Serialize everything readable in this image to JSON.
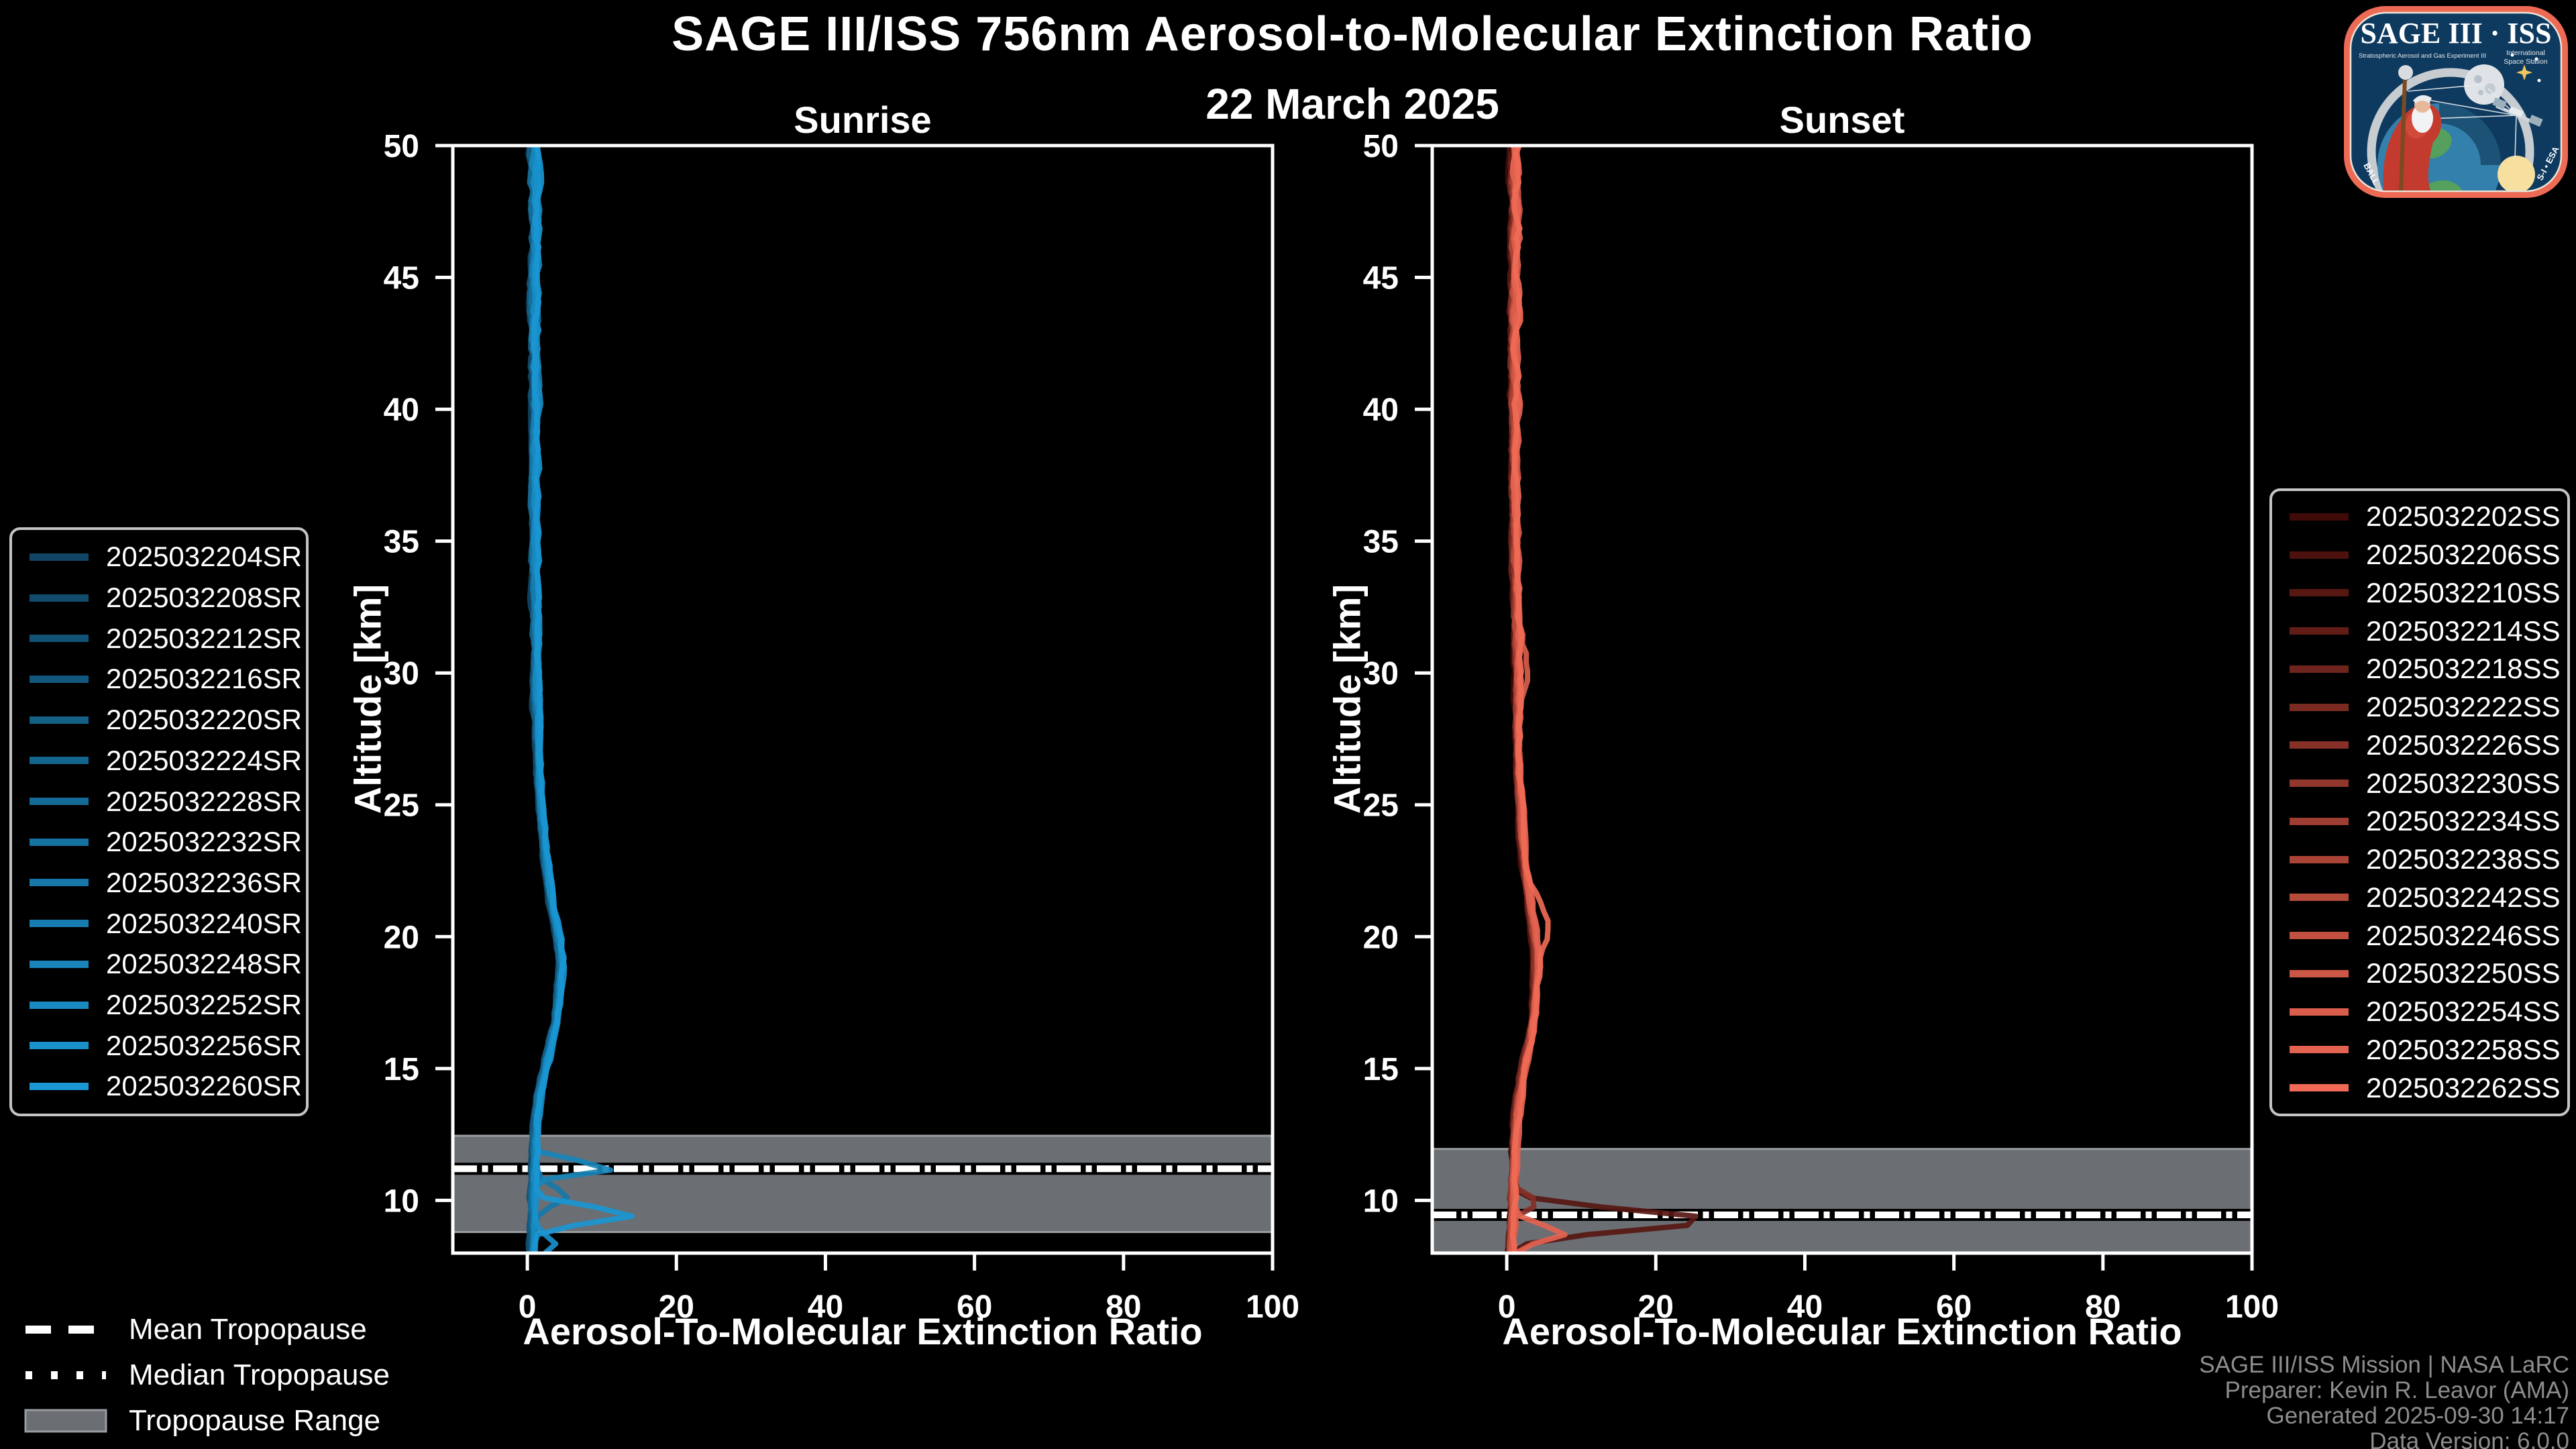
{
  "header": {
    "title": "SAGE III/ISS 756nm Aerosol-to-Molecular Extinction Ratio",
    "date": "22 March 2025"
  },
  "tropopause_legend": {
    "mean": "Mean Tropopause",
    "median": "Median Tropopause",
    "range": "Tropopause Range"
  },
  "attribution": {
    "l1": "SAGE III/ISS Mission | NASA LaRC",
    "l2": "Preparer: Kevin R. Leavor (AMA)",
    "l3": "Generated 2025-09-30 14:17",
    "l4": "Data Version: 6.0.0"
  },
  "logo": {
    "title": "SAGE III · ISS",
    "sub_left": "Stratospheric Aerosol and Gas Experiment III",
    "sub_right_1": "International",
    "sub_right_2": "Space Station",
    "ring_left": "BALL",
    "ring_right": "S-I • ESA"
  },
  "colors": {
    "background": "#000000",
    "spine": "#ffffff",
    "tropopause_band": "#6b6e73",
    "tropopause_band_edge": "#999ca1",
    "tropopause_line": "#ffffff",
    "tropopause_casing": "#000000",
    "attribution_text": "#8d8d8d"
  },
  "chart_data": {
    "type": "line",
    "panels": [
      {
        "name": "Sunrise",
        "xlabel": "Aerosol-To-Molecular Extinction Ratio",
        "ylabel": "Altitude [km]",
        "xlim": [
          -10,
          100
        ],
        "ylim": [
          8,
          50
        ],
        "xticks": [
          0,
          20,
          40,
          60,
          80,
          100
        ],
        "yticks": [
          10,
          15,
          20,
          25,
          30,
          35,
          40,
          45,
          50
        ],
        "grid": false,
        "tropopause": {
          "mean_km": 11.2,
          "median_km": 11.2,
          "range_km": [
            8.8,
            12.45
          ]
        },
        "base_profile": {
          "altitude_km": [
            50,
            47,
            44,
            41,
            38,
            35,
            32,
            30,
            28,
            26,
            24,
            23,
            22,
            21,
            20,
            19,
            18,
            17,
            16,
            15,
            14,
            13,
            12,
            11,
            10,
            9,
            8
          ],
          "ratio": [
            0.9,
            1.0,
            0.9,
            1.0,
            0.9,
            1.0,
            1.1,
            1.2,
            1.3,
            1.6,
            2.1,
            2.4,
            2.8,
            3.4,
            4.1,
            4.5,
            4.3,
            3.9,
            3.2,
            2.3,
            1.6,
            1.2,
            1.0,
            0.9,
            0.8,
            0.7,
            0.6
          ]
        },
        "features": [
          {
            "series": 10,
            "alt": 11.25,
            "peak": 11.5,
            "width": 0.22
          },
          {
            "series": 13,
            "alt": 9.45,
            "peak": 13.0,
            "width": 0.3
          },
          {
            "series": 8,
            "alt": 10.15,
            "peak": 4.5,
            "width": 0.35
          },
          {
            "series": 12,
            "alt": 8.35,
            "peak": 3.0,
            "width": 0.3
          }
        ],
        "series": [
          {
            "label": "2025032204SR",
            "color": "#104664"
          },
          {
            "label": "2025032208SR",
            "color": "#114c6c"
          },
          {
            "label": "2025032212SR",
            "color": "#125275"
          },
          {
            "label": "2025032216SR",
            "color": "#12587d"
          },
          {
            "label": "2025032220SR",
            "color": "#135f86"
          },
          {
            "label": "2025032224SR",
            "color": "#14658e"
          },
          {
            "label": "2025032228SR",
            "color": "#156b97"
          },
          {
            "label": "2025032232SR",
            "color": "#15719f"
          },
          {
            "label": "2025032236SR",
            "color": "#1677a8"
          },
          {
            "label": "2025032240SR",
            "color": "#177db0"
          },
          {
            "label": "2025032248SR",
            "color": "#1884b9"
          },
          {
            "label": "2025032252SR",
            "color": "#188ac1"
          },
          {
            "label": "2025032256SR",
            "color": "#1990ca"
          },
          {
            "label": "2025032260SR",
            "color": "#1a96d2"
          }
        ]
      },
      {
        "name": "Sunset",
        "xlabel": "Aerosol-To-Molecular Extinction Ratio",
        "ylabel": "Altitude [km]",
        "xlim": [
          -10,
          100
        ],
        "ylim": [
          8,
          50
        ],
        "xticks": [
          0,
          20,
          40,
          60,
          80,
          100
        ],
        "yticks": [
          10,
          15,
          20,
          25,
          30,
          35,
          40,
          45,
          50
        ],
        "grid": false,
        "tropopause": {
          "mean_km": 9.45,
          "median_km": 9.45,
          "range_km": [
            8.0,
            11.95
          ]
        },
        "base_profile": {
          "altitude_km": [
            50,
            47,
            44,
            41,
            38,
            35,
            32,
            30,
            28,
            26,
            24,
            23,
            22,
            21,
            20,
            19,
            18,
            17,
            16,
            15,
            14,
            13,
            12,
            11,
            10,
            9,
            8
          ],
          "ratio": [
            1.0,
            1.1,
            1.0,
            1.1,
            1.0,
            1.1,
            1.3,
            1.5,
            1.4,
            1.6,
            2.0,
            2.3,
            2.7,
            3.2,
            3.7,
            4.0,
            3.8,
            3.6,
            3.0,
            2.2,
            1.6,
            1.2,
            1.0,
            0.9,
            0.8,
            0.7,
            0.6
          ]
        },
        "features": [
          {
            "series": 2,
            "alt": 9.25,
            "peak": 27.0,
            "width": 0.4
          },
          {
            "series": 14,
            "alt": 8.75,
            "peak": 7.0,
            "width": 0.3
          },
          {
            "series": 6,
            "alt": 9.9,
            "peak": 3.5,
            "width": 0.3
          },
          {
            "series": 15,
            "alt": 20.6,
            "peak": 1.8,
            "width": 0.8
          },
          {
            "series": 13,
            "alt": 30.0,
            "peak": 1.2,
            "width": 1.0
          }
        ],
        "series": [
          {
            "label": "2025032202SS",
            "color": "#400a08"
          },
          {
            "label": "2025032206SS",
            "color": "#4c100d"
          },
          {
            "label": "2025032210SS",
            "color": "#571712"
          },
          {
            "label": "2025032214SS",
            "color": "#631d17"
          },
          {
            "label": "2025032218SS",
            "color": "#6f241d"
          },
          {
            "label": "2025032222SS",
            "color": "#7b2a22"
          },
          {
            "label": "2025032226SS",
            "color": "#863027"
          },
          {
            "label": "2025032230SS",
            "color": "#92372c"
          },
          {
            "label": "2025032234SS",
            "color": "#9e3d31"
          },
          {
            "label": "2025032238SS",
            "color": "#aa4436"
          },
          {
            "label": "2025032242SS",
            "color": "#b54a3b"
          },
          {
            "label": "2025032246SS",
            "color": "#c15040"
          },
          {
            "label": "2025032250SS",
            "color": "#cd5746"
          },
          {
            "label": "2025032254SS",
            "color": "#d95d4b"
          },
          {
            "label": "2025032258SS",
            "color": "#e46350"
          },
          {
            "label": "2025032262SS",
            "color": "#f06a55"
          }
        ]
      }
    ]
  }
}
